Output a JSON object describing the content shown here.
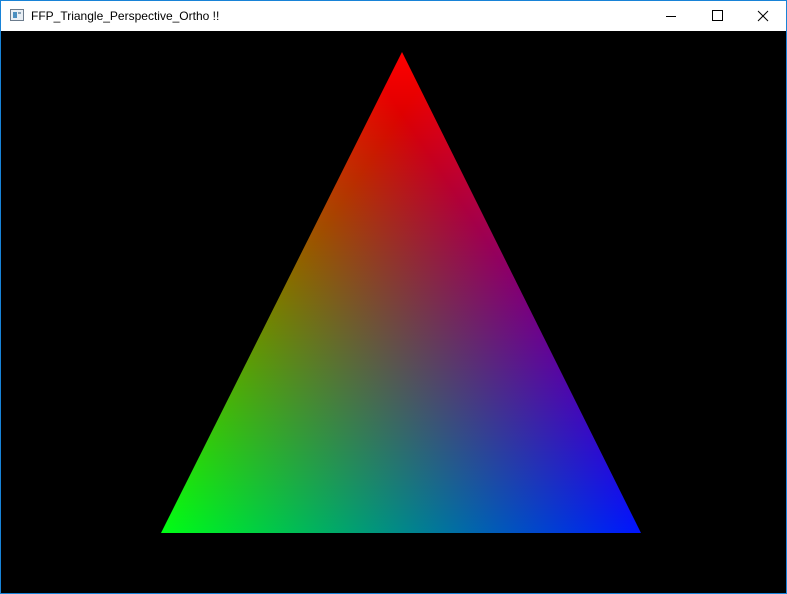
{
  "window": {
    "title": "FFP_Triangle_Perspective_Ortho !!",
    "border_color": "#1883d7"
  },
  "titlebar": {
    "app_icon": "app-window-icon",
    "buttons": [
      {
        "name": "minimize",
        "icon": "minimize-icon"
      },
      {
        "name": "maximize",
        "icon": "maximize-icon"
      },
      {
        "name": "close",
        "icon": "close-icon"
      }
    ]
  },
  "scene": {
    "background": "#000000",
    "triangle": {
      "vertex_colors": {
        "top": "#ff0000",
        "bottom_left": "#00ff00",
        "bottom_right": "#0000ff"
      }
    }
  }
}
